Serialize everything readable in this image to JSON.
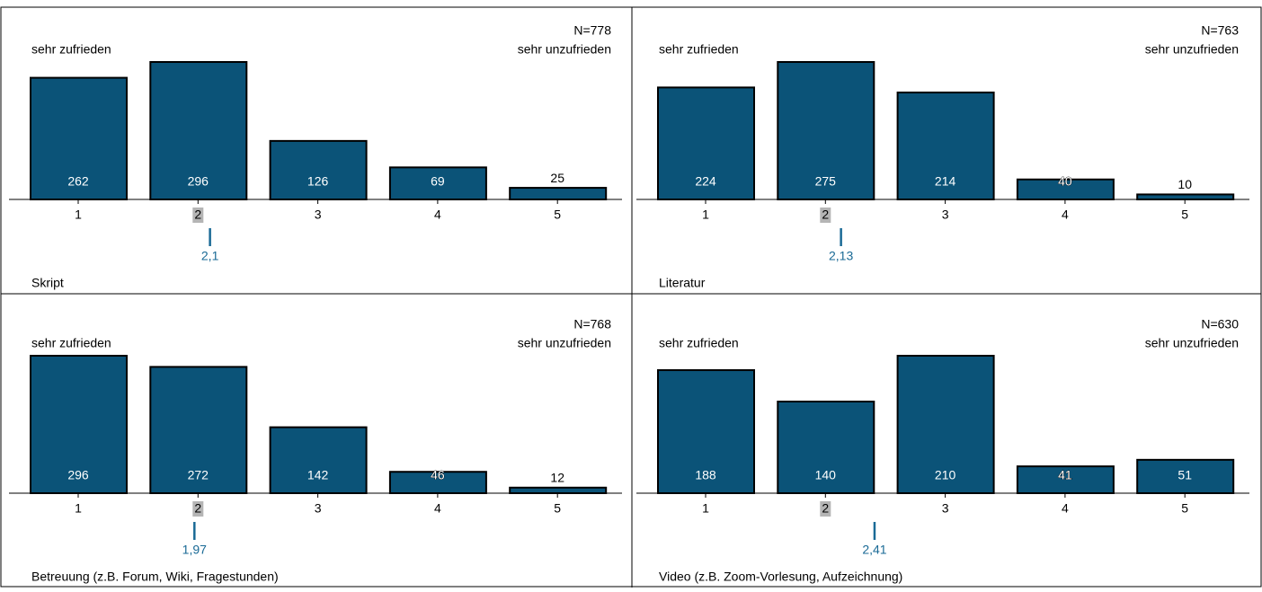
{
  "chart_data": [
    {
      "type": "bar",
      "title": "Skript",
      "n_label": "N=778",
      "left_label": "sehr zufrieden",
      "right_label": "sehr unzufrieden",
      "categories": [
        "1",
        "2",
        "3",
        "4",
        "5"
      ],
      "values": [
        262,
        296,
        126,
        69,
        25
      ],
      "color": "#0b5378",
      "ylim": [
        0,
        296
      ],
      "highlight_category": "2",
      "mean": {
        "value": 2.1,
        "label": "2,1"
      },
      "mean_color": "#1a6a96"
    },
    {
      "type": "bar",
      "title": "Literatur",
      "n_label": "N=763",
      "left_label": "sehr zufrieden",
      "right_label": "sehr unzufrieden",
      "categories": [
        "1",
        "2",
        "3",
        "4",
        "5"
      ],
      "values": [
        224,
        275,
        214,
        40,
        10
      ],
      "color": "#0b5378",
      "ylim": [
        0,
        275
      ],
      "highlight_category": "2",
      "mean": {
        "value": 2.13,
        "label": "2,13"
      },
      "mean_color": "#1a6a96"
    },
    {
      "type": "bar",
      "title": "Betreuung (z.B. Forum, Wiki, Fragestunden)",
      "n_label": "N=768",
      "left_label": "sehr zufrieden",
      "right_label": "sehr unzufrieden",
      "categories": [
        "1",
        "2",
        "3",
        "4",
        "5"
      ],
      "values": [
        296,
        272,
        142,
        46,
        12
      ],
      "color": "#0b5378",
      "ylim": [
        0,
        296
      ],
      "highlight_category": "2",
      "mean": {
        "value": 1.97,
        "label": "1,97"
      },
      "mean_color": "#1a6a96"
    },
    {
      "type": "bar",
      "title": "Video (z.B. Zoom-Vorlesung, Aufzeichnung)",
      "n_label": "N=630",
      "left_label": "sehr zufrieden",
      "right_label": "sehr unzufrieden",
      "categories": [
        "1",
        "2",
        "3",
        "4",
        "5"
      ],
      "values": [
        188,
        140,
        210,
        41,
        51
      ],
      "color": "#0b5378",
      "ylim": [
        0,
        210
      ],
      "highlight_category": "2",
      "mean": {
        "value": 2.41,
        "label": "2,41"
      },
      "mean_color": "#1a6a96"
    }
  ]
}
